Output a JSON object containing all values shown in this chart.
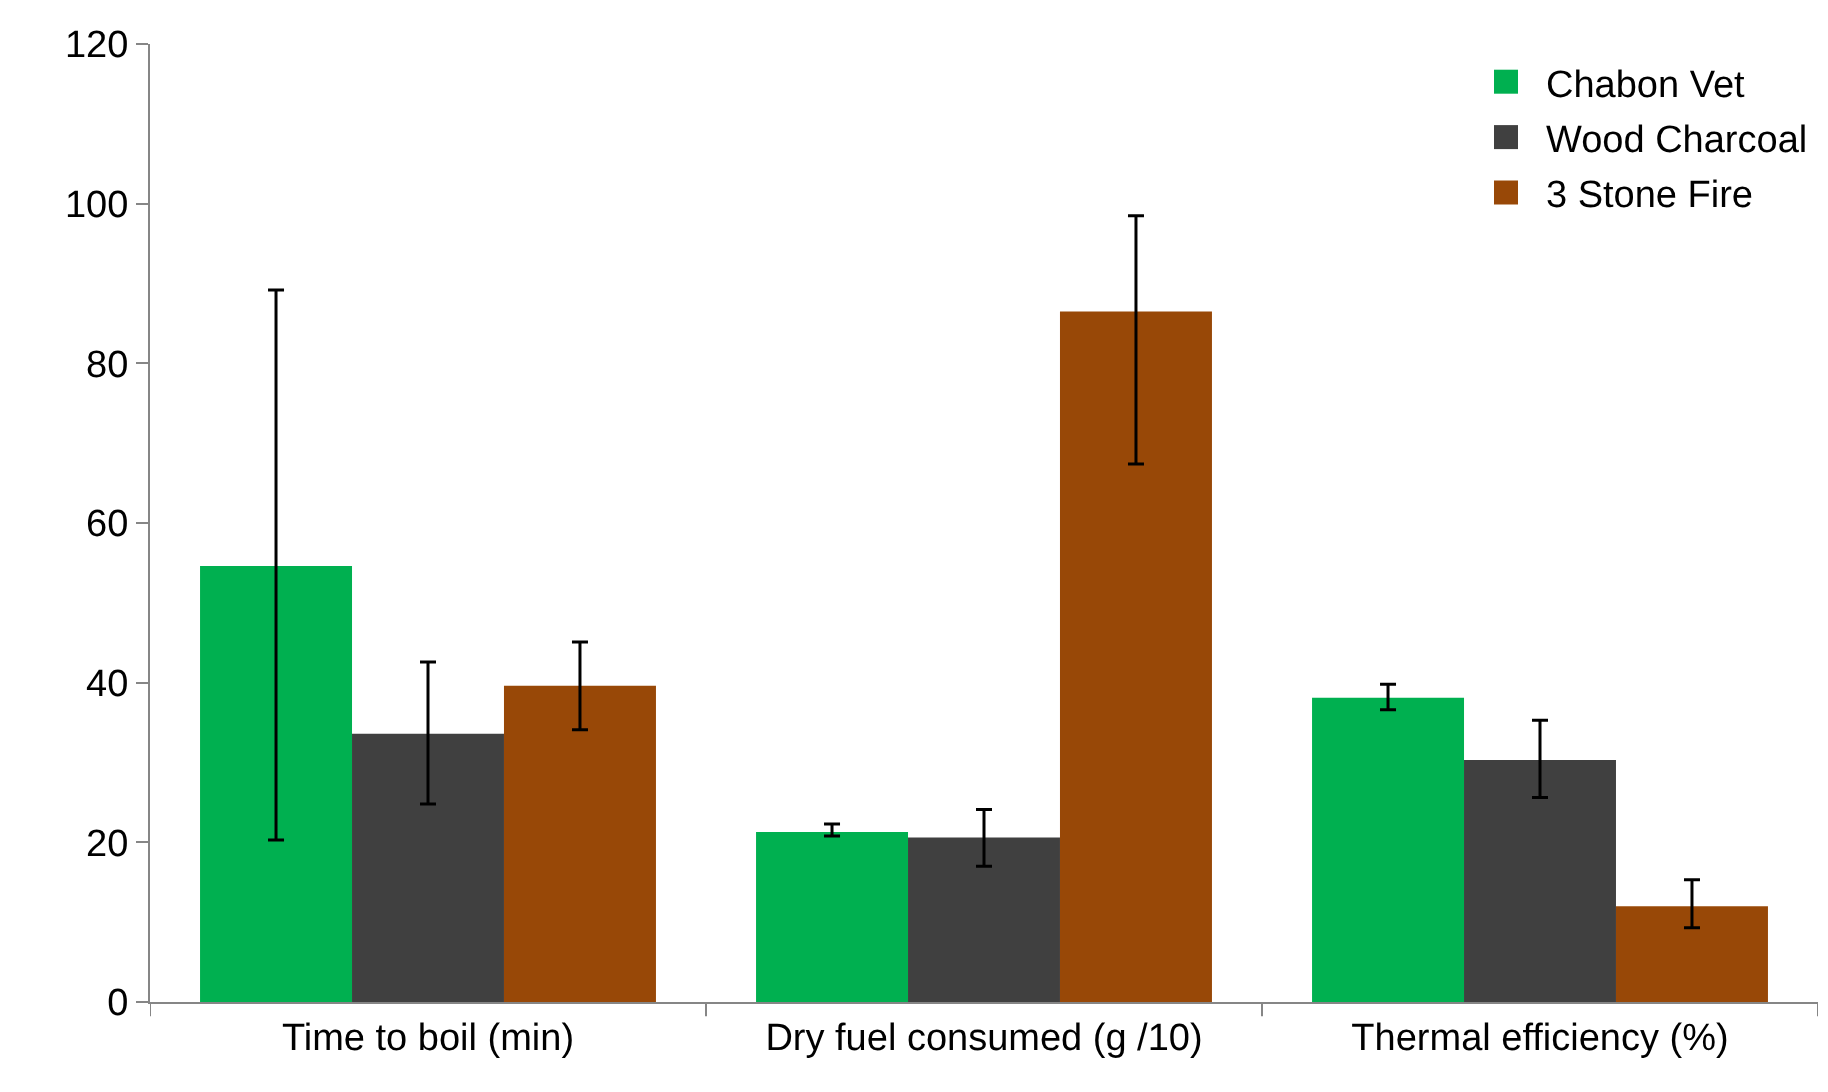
{
  "chart_data": {
    "type": "bar",
    "categories": [
      "Time to boil (min)",
      "Dry fuel consumed (g /10)",
      "Thermal efficiency (%)"
    ],
    "series": [
      {
        "name": "Chabon Vet",
        "color": "#00b050",
        "values": [
          54.6,
          21.3,
          38.1
        ],
        "errors": [
          [
            20.3,
            89.2
          ],
          [
            20.8,
            22.3
          ],
          [
            36.6,
            39.8
          ]
        ]
      },
      {
        "name": "Wood Charcoal",
        "color": "#404040",
        "values": [
          33.6,
          20.6,
          30.3
        ],
        "errors": [
          [
            24.8,
            42.6
          ],
          [
            17.0,
            24.1
          ],
          [
            25.6,
            35.3
          ]
        ]
      },
      {
        "name": "3 Stone Fire",
        "color": "#984807",
        "values": [
          39.6,
          86.5,
          12.0
        ],
        "errors": [
          [
            34.1,
            45.1
          ],
          [
            67.4,
            98.5
          ],
          [
            9.3,
            15.3
          ]
        ]
      }
    ],
    "ylim": [
      0,
      120
    ],
    "yticks": [
      0,
      20,
      40,
      60,
      80,
      100,
      120
    ],
    "legend": "top right"
  }
}
